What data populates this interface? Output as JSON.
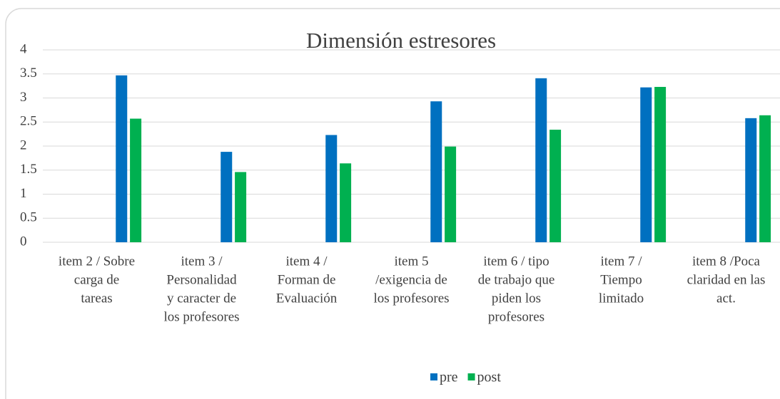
{
  "chart_data": {
    "type": "bar",
    "title": "Dimensión estresores",
    "categories": [
      [
        "item 2 / Sobre",
        "carga de",
        "tareas"
      ],
      [
        "item 3 /",
        "Personalidad",
        "y caracter de",
        "los profesores"
      ],
      [
        "item 4 /",
        "Forman de",
        "Evaluación"
      ],
      [
        "item 5",
        "/exigencia de",
        "los profesores"
      ],
      [
        "item 6 / tipo",
        "de trabajo que",
        "piden los",
        "profesores"
      ],
      [
        "item 7 /",
        "Tiempo",
        "limitado"
      ],
      [
        "item 8 /Poca",
        "claridad en las",
        "act."
      ]
    ],
    "series": [
      {
        "name": "pre",
        "color": "#0070c0",
        "values": [
          3.47,
          1.88,
          2.23,
          2.93,
          3.41,
          3.22,
          2.58
        ]
      },
      {
        "name": "post",
        "color": "#00b050",
        "values": [
          2.57,
          1.46,
          1.64,
          1.99,
          2.34,
          3.23,
          2.64
        ]
      }
    ],
    "ylim": [
      0,
      4
    ],
    "yticks": [
      0,
      0.5,
      1,
      1.5,
      2,
      2.5,
      3,
      3.5,
      4
    ],
    "grid": true,
    "legend": "bottom"
  }
}
